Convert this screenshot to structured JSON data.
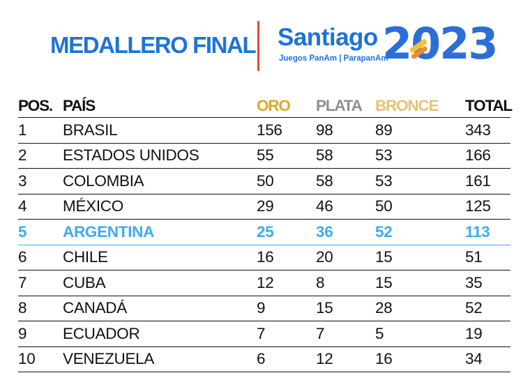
{
  "header": {
    "title": "MEDALLERO FINAL",
    "brand_name": "Santiago",
    "brand_tagline": "Juegos PanAm | ParapanAm",
    "brand_year": "2023",
    "colors": {
      "title_blue": "#1e73d8",
      "divider_red": "#e8453c",
      "year_blue": "#2b6fd6",
      "year_teal": "#34bfc7",
      "year_red": "#ee4236",
      "year_yellow": "#f6c12f",
      "year_orange": "#f18a2c"
    }
  },
  "table": {
    "columns": {
      "pos": "POS.",
      "country": "PAÍS",
      "gold": "ORO",
      "silver": "PLATA",
      "bronze": "BRONCE",
      "total": "TOTAL"
    },
    "column_colors": {
      "gold": "#e0a52a",
      "silver": "#8e8e8e",
      "bronze": "#e6c274",
      "highlight": "#3fa9f5"
    },
    "rows": [
      {
        "pos": "1",
        "country": "BRASIL",
        "gold": "156",
        "silver": "98",
        "bronze": "89",
        "total": "343"
      },
      {
        "pos": "2",
        "country": "ESTADOS UNIDOS",
        "gold": "55",
        "silver": "58",
        "bronze": "53",
        "total": "166"
      },
      {
        "pos": "3",
        "country": "COLOMBIA",
        "gold": "50",
        "silver": "58",
        "bronze": "53",
        "total": "161"
      },
      {
        "pos": "4",
        "country": "MÉXICO",
        "gold": "29",
        "silver": "46",
        "bronze": "50",
        "total": "125"
      },
      {
        "pos": "5",
        "country": "ARGENTINA",
        "gold": "25",
        "silver": "36",
        "bronze": "52",
        "total": "113",
        "highlight": true
      },
      {
        "pos": "6",
        "country": "CHILE",
        "gold": "16",
        "silver": "20",
        "bronze": "15",
        "total": "51"
      },
      {
        "pos": "7",
        "country": "CUBA",
        "gold": "12",
        "silver": "8",
        "bronze": "15",
        "total": "35"
      },
      {
        "pos": "8",
        "country": "CANADÁ",
        "gold": "9",
        "silver": "15",
        "bronze": "28",
        "total": "52"
      },
      {
        "pos": "9",
        "country": "ECUADOR",
        "gold": "7",
        "silver": "7",
        "bronze": "5",
        "total": "19"
      },
      {
        "pos": "10",
        "country": "VENEZUELA",
        "gold": "6",
        "silver": "12",
        "bronze": "16",
        "total": "34"
      }
    ]
  }
}
